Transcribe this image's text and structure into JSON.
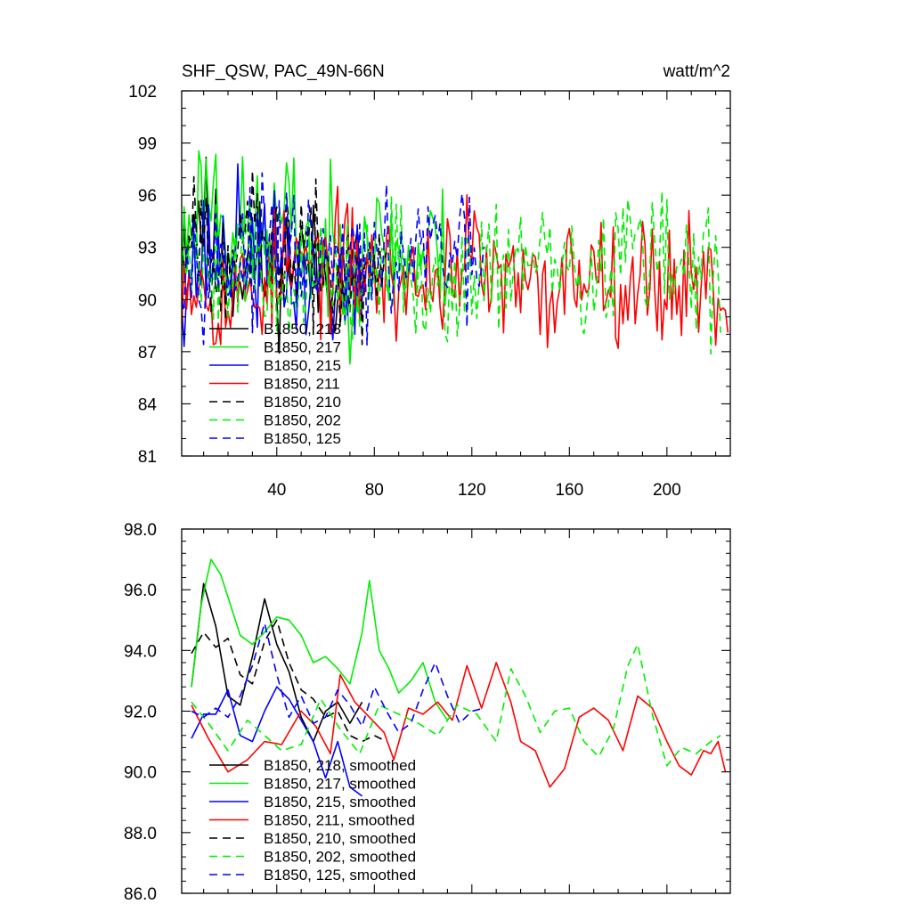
{
  "figure": {
    "title_left": "SHF_QSW, PAC_49N-66N",
    "title_right": "watt/m^2"
  },
  "chart_data": [
    {
      "type": "line",
      "id": "top",
      "title": "SHF_QSW, PAC_49N-66N",
      "units": "watt/m^2",
      "xlim": [
        1,
        226
      ],
      "ylim": [
        81,
        102
      ],
      "xticks": [
        40,
        80,
        120,
        160,
        200
      ],
      "yticks": [
        81,
        84,
        87,
        90,
        93,
        96,
        99,
        102
      ],
      "ytick_labels": [
        "81",
        "84",
        "87",
        "90",
        "93",
        "96",
        "99",
        "102"
      ],
      "legend": {
        "placement": "lower-left",
        "entries": [
          "B1850, 218",
          "B1850, 217",
          "B1850, 215",
          "B1850, 211",
          "B1850, 210",
          "B1850, 202",
          "B1850, 125"
        ]
      },
      "series": [
        {
          "name": "B1850, 218",
          "color": "#000000",
          "dash": "solid",
          "length": 75,
          "anchors": [
            [
              1,
              93.5
            ],
            [
              5,
              94.5
            ],
            [
              8,
              95.5
            ],
            [
              12,
              94
            ],
            [
              16,
              92.5
            ],
            [
              20,
              92
            ],
            [
              24,
              92
            ],
            [
              28,
              92.5
            ],
            [
              32,
              92
            ],
            [
              36,
              91.5
            ],
            [
              40,
              92
            ],
            [
              44,
              92.5
            ],
            [
              48,
              92.5
            ],
            [
              52,
              92
            ],
            [
              56,
              91.5
            ],
            [
              60,
              91.5
            ],
            [
              64,
              91.5
            ],
            [
              68,
              91
            ],
            [
              72,
              91.5
            ],
            [
              75,
              91.5
            ]
          ],
          "amp": 1.9,
          "seed": 11
        },
        {
          "name": "B1850, 217",
          "color": "#00ee00",
          "dash": "solid",
          "length": 110,
          "anchors": [
            [
              1,
              92.5
            ],
            [
              5,
              95
            ],
            [
              9,
              96
            ],
            [
              14,
              96.5
            ],
            [
              18,
              95
            ],
            [
              24,
              94
            ],
            [
              30,
              94
            ],
            [
              36,
              93.5
            ],
            [
              42,
              94.5
            ],
            [
              48,
              94.5
            ],
            [
              54,
              93
            ],
            [
              60,
              92.5
            ],
            [
              66,
              92.5
            ],
            [
              70,
              91.5
            ],
            [
              74,
              93
            ],
            [
              77,
              94.5
            ],
            [
              82,
              92.5
            ],
            [
              88,
              92.5
            ],
            [
              94,
              92
            ],
            [
              100,
              92.5
            ],
            [
              105,
              93
            ],
            [
              110,
              92
            ]
          ],
          "amp": 2.0,
          "seed": 23
        },
        {
          "name": "B1850, 215",
          "color": "#0000ff",
          "dash": "solid",
          "length": 75,
          "anchors": [
            [
              1,
              91.5
            ],
            [
              6,
              92
            ],
            [
              12,
              92.5
            ],
            [
              18,
              92.5
            ],
            [
              24,
              93.5
            ],
            [
              30,
              92.5
            ],
            [
              36,
              92
            ],
            [
              42,
              92
            ],
            [
              48,
              91
            ],
            [
              54,
              90.5
            ],
            [
              60,
              91.5
            ],
            [
              66,
              90.5
            ],
            [
              72,
              90
            ],
            [
              75,
              90.5
            ]
          ],
          "amp": 1.9,
          "seed": 37
        },
        {
          "name": "B1850, 211",
          "color": "#ff0000",
          "dash": "solid",
          "length": 225,
          "anchors": [
            [
              1,
              92
            ],
            [
              10,
              91
            ],
            [
              20,
              90
            ],
            [
              30,
              90.5
            ],
            [
              40,
              91.5
            ],
            [
              50,
              92
            ],
            [
              60,
              92
            ],
            [
              70,
              92
            ],
            [
              80,
              91.5
            ],
            [
              90,
              91
            ],
            [
              100,
              91
            ],
            [
              110,
              92
            ],
            [
              120,
              92.5
            ],
            [
              130,
              91
            ],
            [
              140,
              90.5
            ],
            [
              150,
              90
            ],
            [
              160,
              91.5
            ],
            [
              170,
              92
            ],
            [
              180,
              91.5
            ],
            [
              190,
              91
            ],
            [
              200,
              91
            ],
            [
              210,
              91.5
            ],
            [
              220,
              90.5
            ],
            [
              225,
              90
            ]
          ],
          "amp": 1.8,
          "seed": 53
        },
        {
          "name": "B1850, 210",
          "color": "#000000",
          "dash": "dashed",
          "length": 85,
          "anchors": [
            [
              1,
              94
            ],
            [
              6,
              95
            ],
            [
              12,
              93.5
            ],
            [
              18,
              93
            ],
            [
              24,
              93
            ],
            [
              30,
              93
            ],
            [
              36,
              92.5
            ],
            [
              42,
              93
            ],
            [
              48,
              93
            ],
            [
              54,
              92
            ],
            [
              60,
              91.5
            ],
            [
              66,
              91.5
            ],
            [
              72,
              91
            ],
            [
              78,
              91
            ],
            [
              85,
              91
            ]
          ],
          "amp": 1.9,
          "seed": 67
        },
        {
          "name": "B1850, 202",
          "color": "#00ee00",
          "dash": "dashed",
          "length": 222,
          "anchors": [
            [
              1,
              93
            ],
            [
              10,
              92.5
            ],
            [
              20,
              92
            ],
            [
              30,
              92
            ],
            [
              40,
              91
            ],
            [
              50,
              91
            ],
            [
              60,
              91.5
            ],
            [
              70,
              91.5
            ],
            [
              80,
              91
            ],
            [
              90,
              92
            ],
            [
              100,
              91.5
            ],
            [
              110,
              91
            ],
            [
              120,
              91.5
            ],
            [
              130,
              92.5
            ],
            [
              140,
              92.5
            ],
            [
              150,
              92
            ],
            [
              160,
              91.5
            ],
            [
              170,
              91
            ],
            [
              180,
              92.5
            ],
            [
              186,
              93.5
            ],
            [
              192,
              92
            ],
            [
              200,
              92.5
            ],
            [
              210,
              91.5
            ],
            [
              222,
              91
            ]
          ],
          "amp": 1.9,
          "seed": 79
        },
        {
          "name": "B1850, 125",
          "color": "#0000ff",
          "dash": "dashed",
          "length": 125,
          "anchors": [
            [
              1,
              93
            ],
            [
              8,
              92.5
            ],
            [
              16,
              92
            ],
            [
              24,
              92
            ],
            [
              32,
              92.5
            ],
            [
              40,
              93.5
            ],
            [
              48,
              92.5
            ],
            [
              56,
              92
            ],
            [
              64,
              92
            ],
            [
              72,
              91.5
            ],
            [
              80,
              91.5
            ],
            [
              88,
              92
            ],
            [
              96,
              92.5
            ],
            [
              104,
              93
            ],
            [
              112,
              92.5
            ],
            [
              118,
              92
            ],
            [
              125,
              92
            ]
          ],
          "amp": 1.7,
          "seed": 97
        }
      ]
    },
    {
      "type": "line",
      "id": "bottom",
      "xlim": [
        1,
        226
      ],
      "ylim": [
        86,
        98
      ],
      "xticks": [
        40,
        80,
        120,
        160,
        200
      ],
      "yticks": [
        86,
        88,
        90,
        92,
        94,
        96,
        98
      ],
      "ytick_labels": [
        "86.0",
        "88.0",
        "90.0",
        "92.0",
        "94.0",
        "96.0",
        "98.0"
      ],
      "legend": {
        "placement": "lower-left",
        "entries": [
          "B1850, 218, smoothed",
          "B1850, 217, smoothed",
          "B1850, 215, smoothed",
          "B1850, 211, smoothed",
          "B1850, 210, smoothed",
          "B1850, 202, smoothed",
          "B1850, 125, smoothed"
        ]
      },
      "series": [
        {
          "name": "B1850, 218, smoothed",
          "color": "#000000",
          "dash": "solid",
          "x": [
            5,
            10,
            15,
            20,
            25,
            30,
            35,
            40,
            45,
            50,
            55,
            60,
            65,
            70,
            75
          ],
          "values": [
            92.8,
            96.2,
            94.8,
            92.5,
            92.2,
            93.8,
            95.7,
            94.2,
            93.3,
            91.8,
            91.0,
            92.0,
            92.3,
            91.6,
            92.3
          ]
        },
        {
          "name": "B1850, 217, smoothed",
          "color": "#00ee00",
          "dash": "solid",
          "x": [
            5,
            9,
            13,
            17,
            21,
            25,
            30,
            35,
            40,
            45,
            50,
            55,
            60,
            65,
            70,
            75,
            78,
            82,
            86,
            90,
            95,
            100,
            105,
            110
          ],
          "values": [
            92.8,
            95.5,
            97.0,
            96.5,
            95.5,
            94.5,
            94.2,
            94.6,
            95.1,
            95.0,
            94.5,
            93.6,
            93.8,
            93.4,
            92.9,
            94.6,
            96.3,
            94.0,
            93.4,
            92.6,
            93.0,
            93.6,
            92.3,
            91.7
          ]
        },
        {
          "name": "B1850, 215, smoothed",
          "color": "#0000ff",
          "dash": "solid",
          "x": [
            5,
            10,
            15,
            20,
            25,
            30,
            35,
            40,
            45,
            50,
            55,
            60,
            65,
            70,
            75
          ],
          "values": [
            91.1,
            91.9,
            91.9,
            92.7,
            91.2,
            91.0,
            92.0,
            92.8,
            92.4,
            91.7,
            91.0,
            89.8,
            91.0,
            89.5,
            89.2
          ]
        },
        {
          "name": "B1850, 211, smoothed",
          "color": "#ff0000",
          "dash": "solid",
          "x": [
            5,
            12,
            20,
            28,
            35,
            42,
            50,
            56,
            62,
            66,
            72,
            78,
            84,
            88,
            94,
            100,
            106,
            112,
            118,
            124,
            130,
            136,
            140,
            146,
            152,
            158,
            164,
            170,
            176,
            182,
            188,
            194,
            200,
            205,
            210,
            215,
            218,
            221,
            224
          ],
          "values": [
            92.2,
            91.1,
            90.0,
            90.4,
            91.0,
            90.9,
            92.0,
            91.5,
            90.6,
            93.2,
            92.3,
            91.8,
            91.3,
            90.4,
            92.1,
            91.9,
            92.3,
            91.7,
            93.5,
            92.1,
            93.6,
            92.3,
            91.0,
            90.7,
            89.5,
            90.1,
            91.8,
            92.1,
            91.7,
            90.7,
            92.5,
            92.1,
            91.0,
            90.2,
            89.9,
            90.7,
            90.6,
            91.0,
            90.0
          ]
        },
        {
          "name": "B1850, 210, smoothed",
          "color": "#000000",
          "dash": "dashed",
          "x": [
            5,
            10,
            15,
            20,
            25,
            30,
            35,
            40,
            45,
            50,
            55,
            60,
            65,
            70,
            75,
            80,
            85
          ],
          "values": [
            93.9,
            94.6,
            94.1,
            94.4,
            93.2,
            92.9,
            94.3,
            95.0,
            93.6,
            92.7,
            92.4,
            91.8,
            92.0,
            91.2,
            91.0,
            91.2,
            91.0
          ]
        },
        {
          "name": "B1850, 202, smoothed",
          "color": "#00ee00",
          "dash": "dashed",
          "x": [
            5,
            12,
            20,
            28,
            35,
            42,
            50,
            58,
            66,
            74,
            82,
            90,
            98,
            106,
            114,
            122,
            130,
            136,
            142,
            148,
            154,
            160,
            166,
            172,
            178,
            184,
            188,
            194,
            200,
            206,
            212,
            218,
            222
          ],
          "values": [
            92.3,
            91.6,
            90.7,
            91.7,
            91.2,
            90.7,
            90.9,
            92.4,
            91.4,
            90.6,
            92.2,
            91.9,
            91.6,
            91.2,
            92.2,
            91.9,
            91.0,
            93.4,
            92.5,
            91.3,
            92.0,
            92.1,
            91.0,
            90.5,
            91.4,
            93.5,
            94.2,
            91.9,
            90.2,
            90.8,
            90.6,
            91.0,
            91.2
          ]
        },
        {
          "name": "B1850, 125, smoothed",
          "color": "#0000ff",
          "dash": "dashed",
          "x": [
            5,
            10,
            15,
            20,
            25,
            30,
            35,
            40,
            45,
            50,
            55,
            60,
            65,
            70,
            75,
            80,
            85,
            90,
            95,
            100,
            105,
            110,
            115,
            120,
            125
          ],
          "values": [
            92.0,
            91.8,
            92.1,
            91.8,
            92.5,
            93.5,
            94.9,
            93.2,
            91.8,
            92.5,
            91.6,
            91.8,
            92.7,
            92.2,
            91.5,
            92.8,
            92.0,
            91.3,
            91.6,
            92.7,
            93.6,
            92.5,
            91.6,
            92.0,
            92.1
          ]
        }
      ]
    }
  ]
}
